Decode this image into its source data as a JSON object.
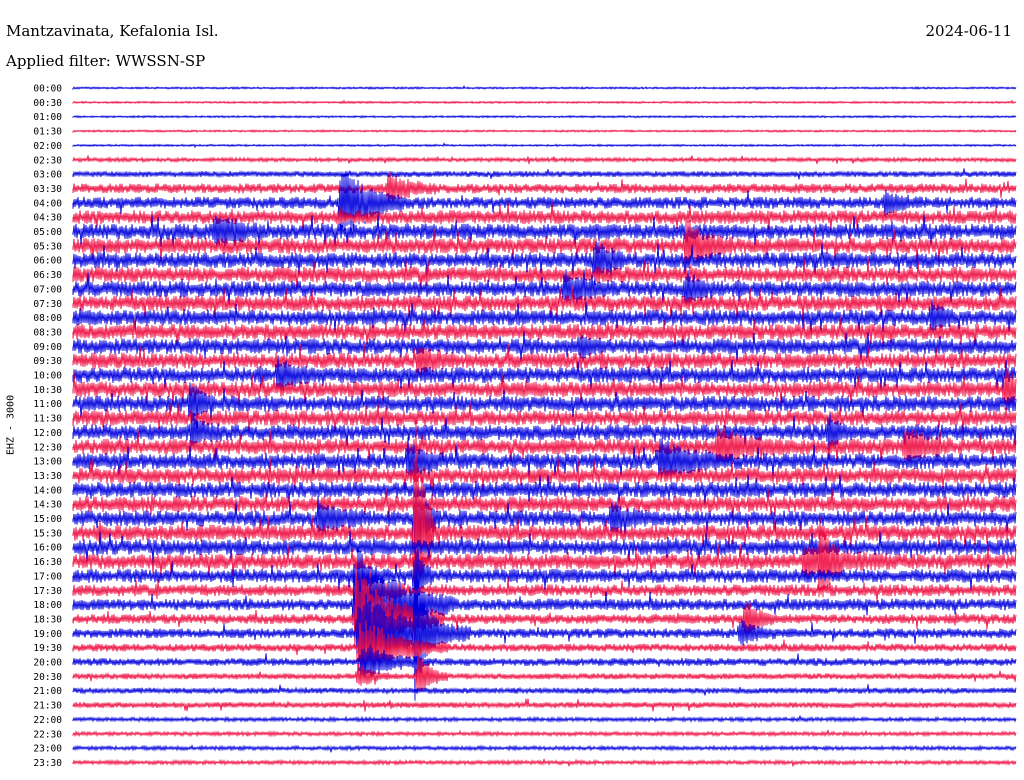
{
  "header": {
    "station": "Mantzavinata, Kefalonia Isl.",
    "date": "2024-06-11",
    "filter": "Applied filter: WWSSN-SP"
  },
  "side_label": "EHZ - 3000",
  "chart_data": {
    "type": "line",
    "description_kind": "helicorder",
    "rows": [
      "00:00",
      "00:30",
      "01:00",
      "01:30",
      "02:00",
      "02:30",
      "03:00",
      "03:30",
      "04:00",
      "04:30",
      "05:00",
      "05:30",
      "06:00",
      "06:30",
      "07:00",
      "07:30",
      "08:00",
      "08:30",
      "09:00",
      "09:30",
      "10:00",
      "10:30",
      "11:00",
      "11:30",
      "12:00",
      "12:30",
      "13:00",
      "13:30",
      "14:00",
      "14:30",
      "15:00",
      "15:30",
      "16:00",
      "16:30",
      "17:00",
      "17:30",
      "18:00",
      "18:30",
      "19:00",
      "19:30",
      "20:00",
      "20:30",
      "21:00",
      "21:30",
      "22:00",
      "22:30",
      "23:00",
      "23:30"
    ],
    "trace_colors": [
      "#0000dd",
      "#ee1144"
    ],
    "noise_level": [
      1,
      1,
      1,
      1,
      1,
      2,
      3,
      5,
      6,
      7,
      8,
      8,
      8,
      8,
      8,
      8,
      8,
      8,
      8,
      8,
      8,
      8,
      8,
      8,
      8,
      8,
      8,
      8,
      8,
      8,
      8,
      8,
      8,
      8,
      7,
      6,
      6,
      5,
      5,
      4,
      4,
      3,
      3,
      3,
      2,
      2,
      2,
      2
    ],
    "events": [
      {
        "row": 36,
        "x": 355,
        "amp": 60,
        "dur": 40
      },
      {
        "row": 37,
        "x": 356,
        "amp": 50,
        "dur": 35
      },
      {
        "row": 38,
        "x": 358,
        "amp": 45,
        "dur": 45
      },
      {
        "row": 39,
        "x": 360,
        "amp": 30,
        "dur": 35
      },
      {
        "row": 40,
        "x": 362,
        "amp": 18,
        "dur": 25
      },
      {
        "row": 34,
        "x": 355,
        "amp": 12,
        "dur": 15
      },
      {
        "row": 35,
        "x": 356,
        "amp": 25,
        "dur": 20
      },
      {
        "row": 41,
        "x": 358,
        "amp": 12,
        "dur": 15
      },
      {
        "row": 30,
        "x": 415,
        "amp": 40,
        "dur": 10
      },
      {
        "row": 31,
        "x": 415,
        "amp": 140,
        "dur": 8
      },
      {
        "row": 34,
        "x": 415,
        "amp": 30,
        "dur": 8
      },
      {
        "row": 38,
        "x": 415,
        "amp": 60,
        "dur": 10
      },
      {
        "row": 41,
        "x": 418,
        "amp": 25,
        "dur": 12
      },
      {
        "row": 8,
        "x": 341,
        "amp": 40,
        "dur": 25
      },
      {
        "row": 7,
        "x": 388,
        "amp": 14,
        "dur": 20
      },
      {
        "row": 10,
        "x": 215,
        "amp": 15,
        "dur": 20
      },
      {
        "row": 12,
        "x": 595,
        "amp": 20,
        "dur": 12
      },
      {
        "row": 11,
        "x": 686,
        "amp": 22,
        "dur": 20
      },
      {
        "row": 14,
        "x": 565,
        "amp": 15,
        "dur": 20
      },
      {
        "row": 14,
        "x": 686,
        "amp": 14,
        "dur": 15
      },
      {
        "row": 26,
        "x": 660,
        "amp": 22,
        "dur": 25
      },
      {
        "row": 26,
        "x": 408,
        "amp": 20,
        "dur": 15
      },
      {
        "row": 25,
        "x": 718,
        "amp": 16,
        "dur": 25
      },
      {
        "row": 25,
        "x": 905,
        "amp": 14,
        "dur": 20
      },
      {
        "row": 30,
        "x": 318,
        "amp": 15,
        "dur": 20
      },
      {
        "row": 30,
        "x": 612,
        "amp": 14,
        "dur": 15
      },
      {
        "row": 33,
        "x": 805,
        "amp": 14,
        "dur": 35
      },
      {
        "row": 33,
        "x": 820,
        "amp": 40,
        "dur": 8
      },
      {
        "row": 37,
        "x": 745,
        "amp": 20,
        "dur": 12
      },
      {
        "row": 38,
        "x": 740,
        "amp": 12,
        "dur": 15
      },
      {
        "row": 20,
        "x": 278,
        "amp": 14,
        "dur": 15
      },
      {
        "row": 21,
        "x": 1005,
        "amp": 20,
        "dur": 15
      },
      {
        "row": 22,
        "x": 190,
        "amp": 20,
        "dur": 10
      },
      {
        "row": 24,
        "x": 192,
        "amp": 14,
        "dur": 12
      },
      {
        "row": 24,
        "x": 828,
        "amp": 15,
        "dur": 12
      },
      {
        "row": 19,
        "x": 418,
        "amp": 12,
        "dur": 15
      },
      {
        "row": 18,
        "x": 580,
        "amp": 10,
        "dur": 10
      },
      {
        "row": 8,
        "x": 885,
        "amp": 10,
        "dur": 15
      },
      {
        "row": 16,
        "x": 932,
        "amp": 14,
        "dur": 10
      }
    ]
  }
}
